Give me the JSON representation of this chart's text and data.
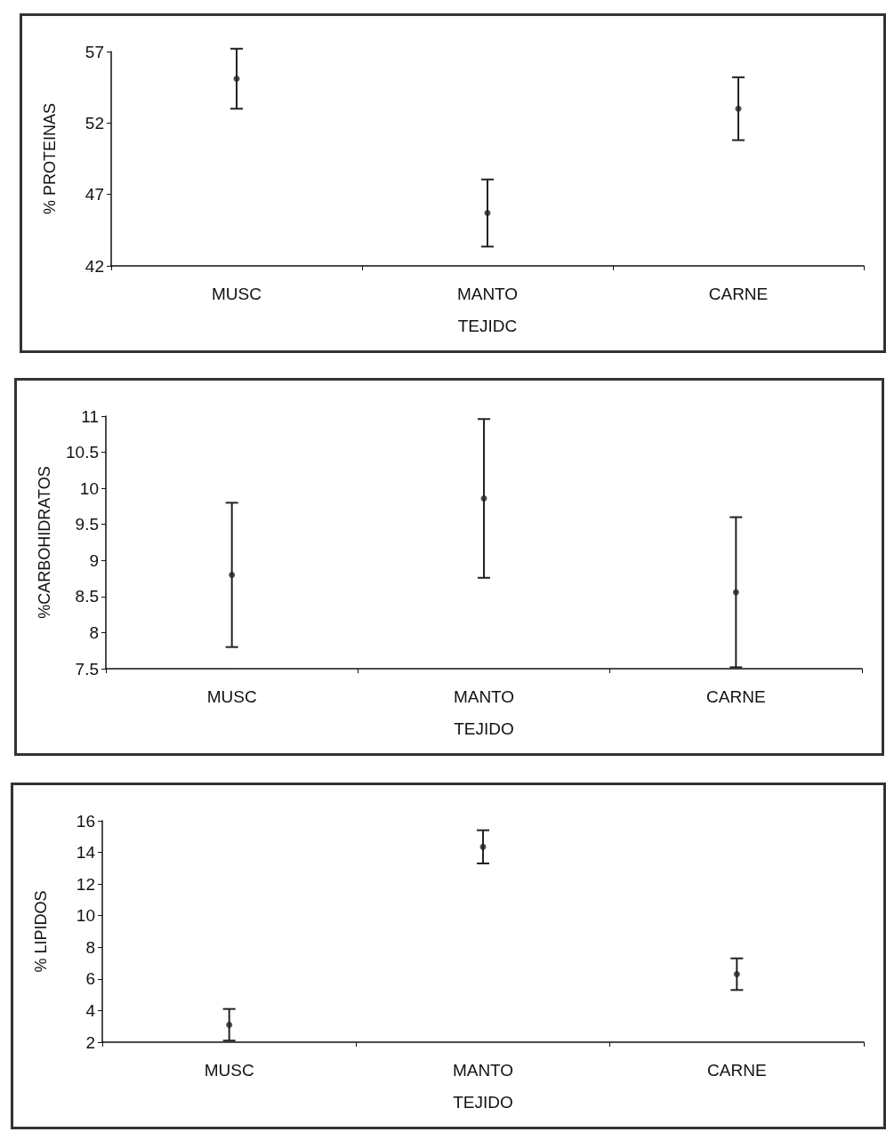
{
  "chart_data": [
    {
      "type": "scatter",
      "categories": [
        "MUSC",
        "MANTO",
        "CARNE"
      ],
      "xlabel": "TEJIDC",
      "ylabel": "% PROTEINAS",
      "ylim": [
        42,
        57
      ],
      "yticks": [
        42,
        47,
        52,
        57
      ],
      "grid": false,
      "marker": "circle",
      "series": [
        {
          "color": "#222222",
          "values": [
            55.1,
            45.7,
            53.0
          ],
          "errors": [
            2.1,
            2.35,
            2.2
          ]
        }
      ]
    },
    {
      "type": "scatter",
      "categories": [
        "MUSC",
        "MANTO",
        "CARNE"
      ],
      "xlabel": "TEJIDO",
      "ylabel": "%CARBOHIDRATOS",
      "ylim": [
        7.5,
        11
      ],
      "yticks": [
        7.5,
        8,
        8.5,
        9,
        9.5,
        10,
        10.5,
        11
      ],
      "grid": false,
      "marker": "circle",
      "series": [
        {
          "color": "#222222",
          "values": [
            8.8,
            9.86,
            8.56
          ],
          "errors": [
            1.0,
            1.1,
            1.04
          ]
        }
      ]
    },
    {
      "type": "scatter",
      "categories": [
        "MUSC",
        "MANTO",
        "CARNE"
      ],
      "xlabel": "TEJIDO",
      "ylabel": "% LIPIDOS",
      "ylim": [
        2,
        16
      ],
      "yticks": [
        2,
        4,
        6,
        8,
        10,
        12,
        14,
        16
      ],
      "grid": false,
      "marker": "circle",
      "series": [
        {
          "color": "#222222",
          "values": [
            3.1,
            14.35,
            6.3
          ],
          "errors": [
            1.0,
            1.05,
            1.0
          ]
        }
      ]
    }
  ]
}
